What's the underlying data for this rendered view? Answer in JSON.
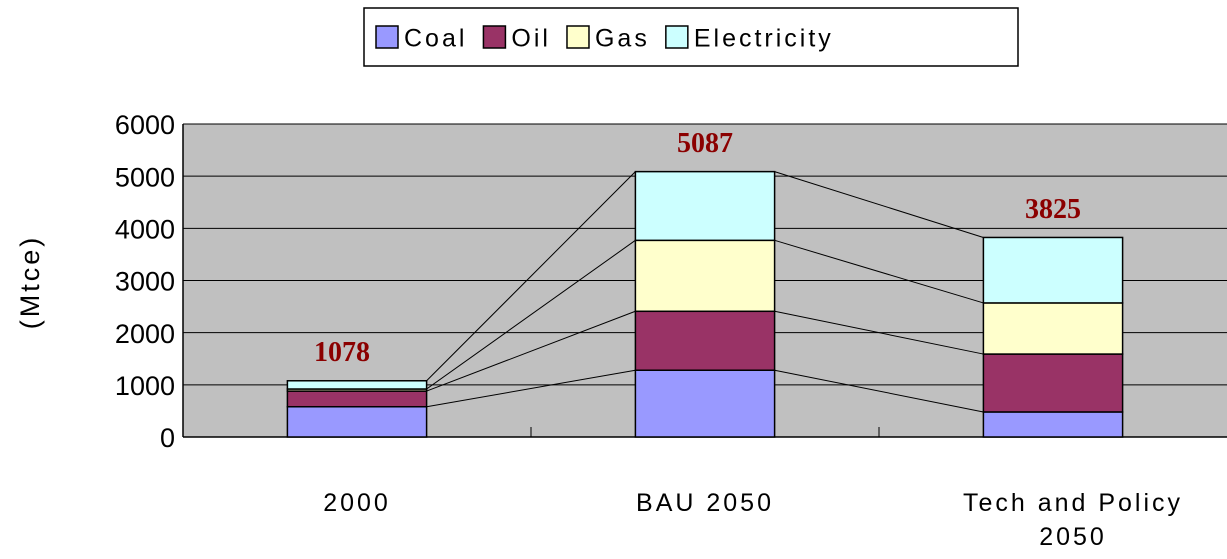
{
  "chart_data": {
    "type": "stacked_bar",
    "y_label": "(Mtce)",
    "categories": [
      "2000",
      "BAU 2050",
      "Tech and Policy 2050"
    ],
    "series": [
      {
        "name": "Coal",
        "color": "#9999ff",
        "values": [
          580,
          1280,
          480
        ]
      },
      {
        "name": "Oil",
        "color": "#993366",
        "values": [
          300,
          1130,
          1110
        ]
      },
      {
        "name": "Gas",
        "color": "#ffffcc",
        "values": [
          40,
          1360,
          980
        ]
      },
      {
        "name": "Electricity",
        "color": "#ccffff",
        "values": [
          158,
          1317,
          1255
        ]
      }
    ],
    "totals": [
      1078,
      5087,
      3825
    ],
    "ylim": [
      0,
      6000
    ],
    "yticks": [
      0,
      1000,
      2000,
      3000,
      4000,
      5000,
      6000
    ],
    "grid": true,
    "legend": "top",
    "plot_background": "#c0c0c0"
  }
}
